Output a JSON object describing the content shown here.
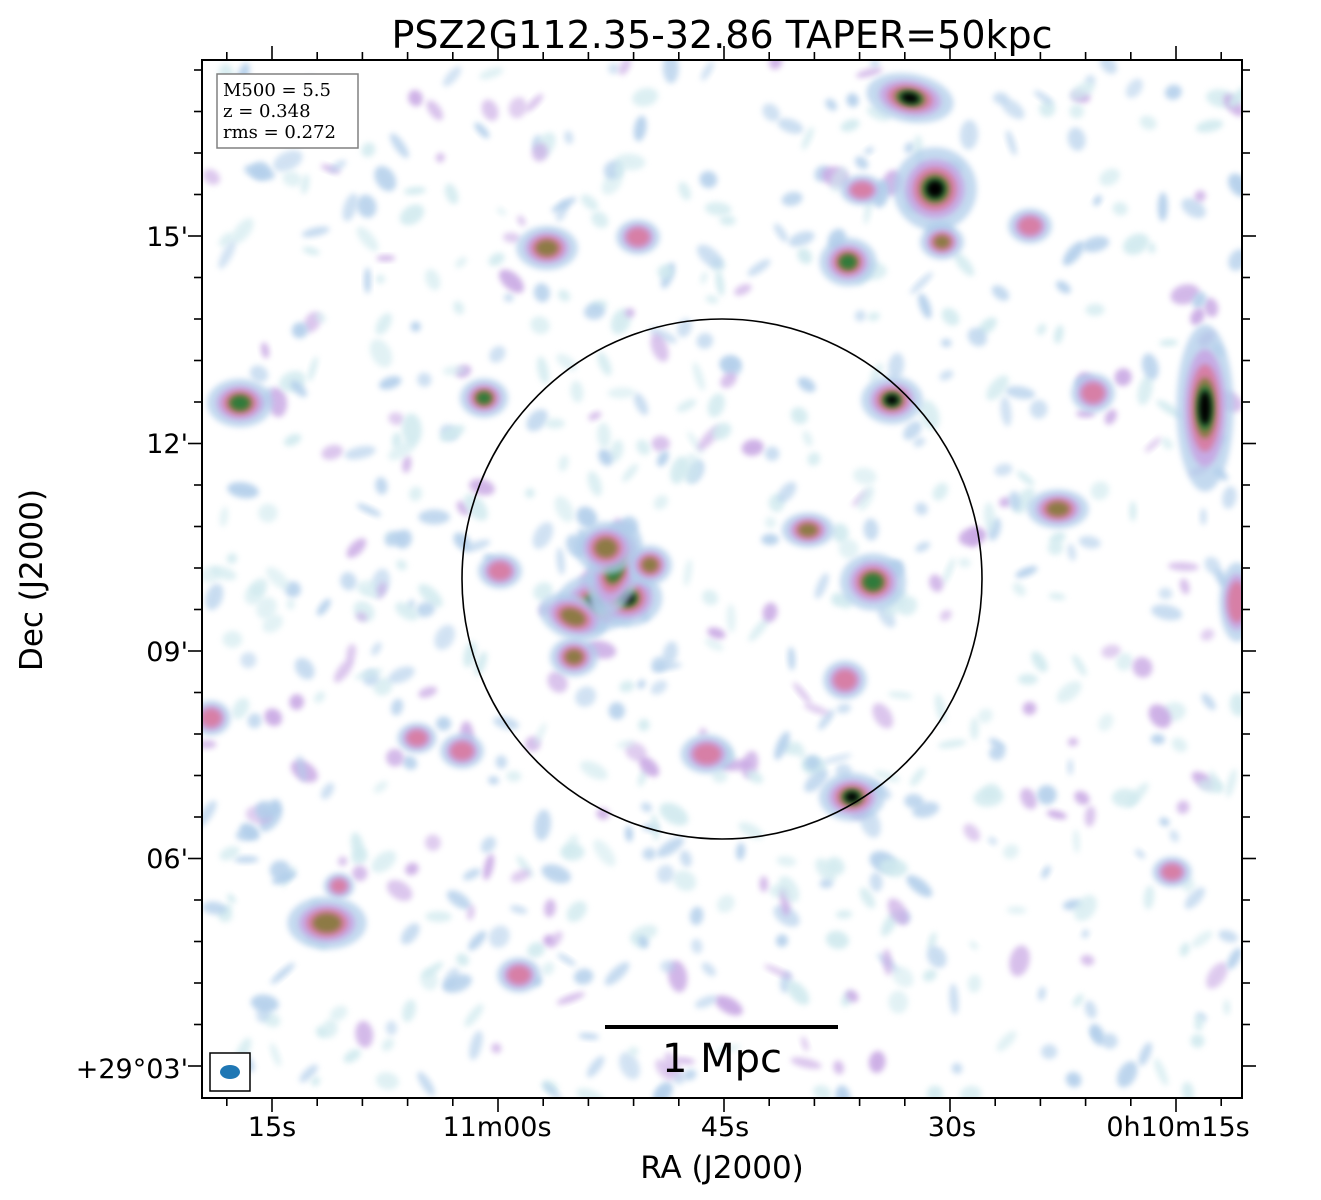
{
  "title": "PSZ2G112.35-32.86 TAPER=50kpc",
  "x_axis": {
    "label": "RA (J2000)",
    "tick_labels": [
      "15s",
      "11m00s",
      "45s",
      "30s",
      "0h10m15s"
    ]
  },
  "y_axis": {
    "label": "Dec (J2000)",
    "tick_labels": [
      "15'",
      "12'",
      "09'",
      "06'",
      "+29°03'"
    ]
  },
  "stats_box": {
    "m500": "M500 = 5.5",
    "z": "z = 0.348",
    "rms": "rms = 0.272"
  },
  "scalebar": {
    "label": "1 Mpc"
  },
  "colormap": [
    "#ffffff",
    "#cfe9ee",
    "#b0cdea",
    "#c7a6e3",
    "#d77fa6",
    "#8d7a45",
    "#2e7a3a",
    "#000000"
  ],
  "overlay_circle_color": "#000000",
  "beam_color": "#1f77b4"
}
